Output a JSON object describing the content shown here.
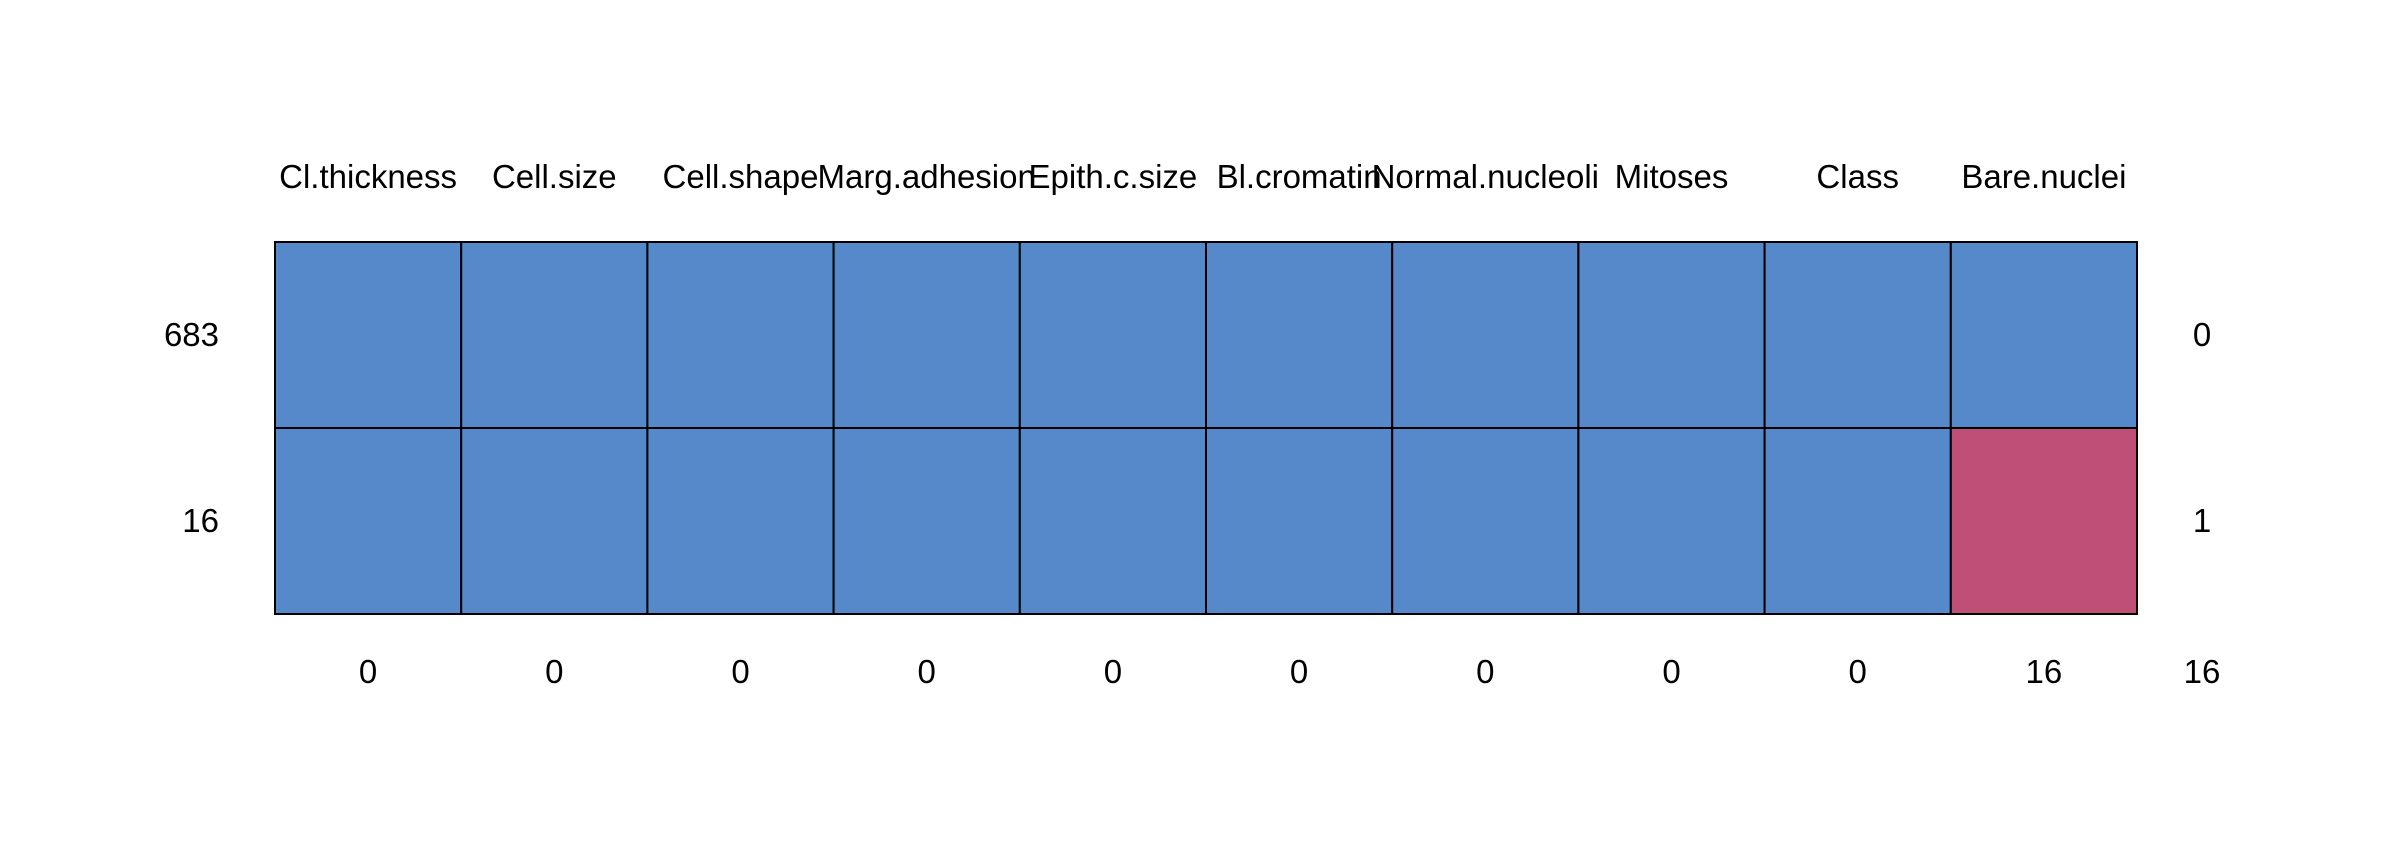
{
  "chart_data": {
    "type": "heatmap",
    "title": "",
    "columns": [
      "Cl.thickness",
      "Cell.size",
      "Cell.shape",
      "Marg.adhesion",
      "Epith.c.size",
      "Bl.cromatin",
      "Normal.nucleoli",
      "Mitoses",
      "Class",
      "Bare.nuclei"
    ],
    "rows": [
      {
        "count": "683",
        "missing_per_row": "0",
        "pattern": [
          1,
          1,
          1,
          1,
          1,
          1,
          1,
          1,
          1,
          1
        ]
      },
      {
        "count": "16",
        "missing_per_row": "1",
        "pattern": [
          1,
          1,
          1,
          1,
          1,
          1,
          1,
          1,
          1,
          0
        ]
      }
    ],
    "column_missing_counts": [
      "0",
      "0",
      "0",
      "0",
      "0",
      "0",
      "0",
      "0",
      "0",
      "16"
    ],
    "total_missing": "16",
    "colors": {
      "observed": "#5589CA",
      "missing": "#C04F77",
      "border": "#000000"
    }
  }
}
